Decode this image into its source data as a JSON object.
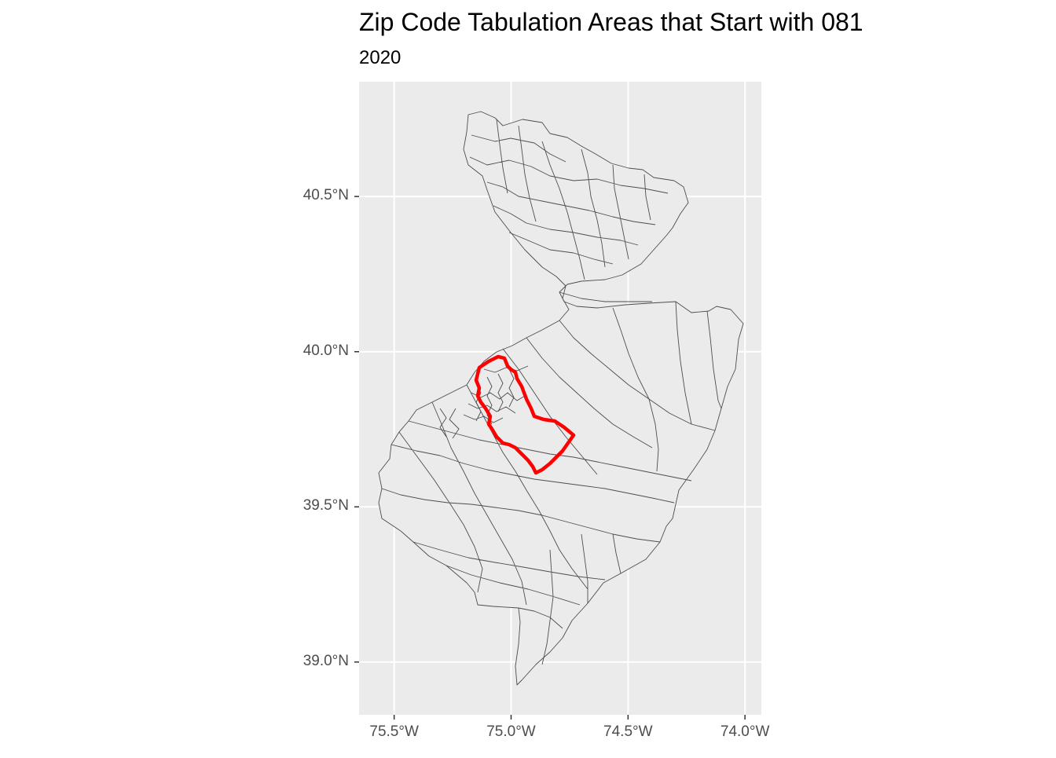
{
  "title": "Zip Code Tabulation Areas that Start with 081",
  "subtitle": "2020",
  "colors": {
    "panel_background": "#ebebeb",
    "grid": "#ffffff",
    "polygon_fill": "#ebebeb",
    "polygon_stroke": "#4d4d4d",
    "highlight_stroke": "#ff0000",
    "axis_text": "#4d4d4d"
  },
  "chart_data": {
    "type": "map",
    "projection": "longitude/latitude",
    "title": "Zip Code Tabulation Areas that Start with 081",
    "subtitle": "2020",
    "xlim": [
      -75.65,
      -73.93
    ],
    "ylim": [
      38.83,
      40.87
    ],
    "grid": true,
    "x_ticks": [
      {
        "value": -75.5,
        "label": "75.5°W"
      },
      {
        "value": -75.0,
        "label": "75.0°W"
      },
      {
        "value": -74.5,
        "label": "74.5°W"
      },
      {
        "value": -74.0,
        "label": "74.0°W"
      }
    ],
    "y_ticks": [
      {
        "value": 39.0,
        "label": "39.0°N"
      },
      {
        "value": 39.5,
        "label": "39.5°N"
      },
      {
        "value": 40.0,
        "label": "40.0°N"
      },
      {
        "value": 40.5,
        "label": "40.5°N"
      }
    ],
    "highlighted_region": {
      "prefix": "081",
      "outline_color": "#ff0000"
    }
  }
}
